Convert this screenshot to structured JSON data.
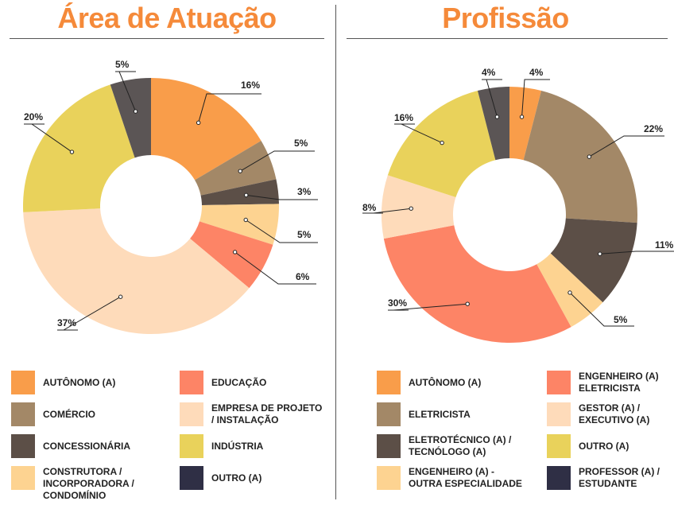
{
  "titles": {
    "left": "Área de Atuação",
    "right": "Profissão"
  },
  "chart_data": [
    {
      "type": "pie",
      "title": "Área de Atuação",
      "slices": [
        {
          "label": "AUTÔNOMO (A)",
          "value": 16,
          "text": "16%",
          "color": "#f99d4a"
        },
        {
          "label": "COMÉRCIO",
          "value": 5,
          "text": "5%",
          "color": "#a38867"
        },
        {
          "label": "CONCESSIONÁRIA",
          "value": 3,
          "text": "3%",
          "color": "#5c4f47"
        },
        {
          "label": "CONSTRUTORA / INCORPORADORA / CONDOMÍNIO",
          "value": 5,
          "text": "5%",
          "color": "#fdd391"
        },
        {
          "label": "EDUCAÇÃO",
          "value": 6,
          "text": "6%",
          "color": "#fd8466"
        },
        {
          "label": "EMPRESA DE PROJETO / INSTALAÇÃO",
          "value": 37,
          "text": "37%",
          "color": "#fedbba"
        },
        {
          "label": "INDÚSTRIA",
          "value": 20,
          "text": "20%",
          "color": "#e9d25b"
        },
        {
          "label": "OUTRO (A)",
          "value": 5,
          "text": "5%",
          "color": "#5b5555"
        }
      ]
    },
    {
      "type": "pie",
      "title": "Profissão",
      "slices": [
        {
          "label": "AUTÔNOMO (A)",
          "value": 4,
          "text": "4%",
          "color": "#f99d4a"
        },
        {
          "label": "ELETRICISTA",
          "value": 22,
          "text": "22%",
          "color": "#a38867"
        },
        {
          "label": "ELETROTÉCNICO (A) / TECNÓLOGO (A)",
          "value": 11,
          "text": "11%",
          "color": "#5c4f47"
        },
        {
          "label": "ENGENHEIRO (A) - OUTRA ESPECIALIDADE",
          "value": 5,
          "text": "5%",
          "color": "#fdd391"
        },
        {
          "label": "ENGENHEIRO (A) ELETRICISTA",
          "value": 30,
          "text": "30%",
          "color": "#fd8466"
        },
        {
          "label": "GESTOR (A) / EXECUTIVO (A)",
          "value": 8,
          "text": "8%",
          "color": "#fedbba"
        },
        {
          "label": "OUTRO (A)",
          "value": 16,
          "text": "16%",
          "color": "#e9d25b"
        },
        {
          "label": "PROFESSOR (A) / ESTUDANTE",
          "value": 4,
          "text": "4%",
          "color": "#5b5555"
        }
      ]
    }
  ],
  "legends": {
    "left": [
      {
        "text": "AUTÔNOMO (A)",
        "color": "#f99d4a"
      },
      {
        "text": "COMÉRCIO",
        "color": "#a38867"
      },
      {
        "text": "CONCESSIONÁRIA",
        "color": "#5c4f47"
      },
      {
        "text": "CONSTRUTORA /\nINCORPORADORA /\nCONDOMÍNIO",
        "color": "#fdd391"
      },
      {
        "text": "EDUCAÇÃO",
        "color": "#fd8466"
      },
      {
        "text": "EMPRESA DE PROJETO\n/ INSTALAÇÃO",
        "color": "#fedbba"
      },
      {
        "text": "INDÚSTRIA",
        "color": "#e9d25b"
      },
      {
        "text": "OUTRO (A)",
        "color": "#2f2f45"
      }
    ],
    "right": [
      {
        "text": "AUTÔNOMO (A)",
        "color": "#f99d4a"
      },
      {
        "text": "ELETRICISTA",
        "color": "#a38867"
      },
      {
        "text": "ELETROTÉCNICO (A) /\nTECNÓLOGO (A)",
        "color": "#5c4f47"
      },
      {
        "text": "ENGENHEIRO (A) -\nOUTRA ESPECIALIDADE",
        "color": "#fdd391"
      },
      {
        "text": "ENGENHEIRO (A)\nELETRICISTA",
        "color": "#fd8466"
      },
      {
        "text": "GESTOR (A) /\nEXECUTIVO (A)",
        "color": "#fedbba"
      },
      {
        "text": "OUTRO (A)",
        "color": "#e9d25b"
      },
      {
        "text": "PROFESSOR (A) /\nESTUDANTE",
        "color": "#2f2f45"
      }
    ]
  }
}
